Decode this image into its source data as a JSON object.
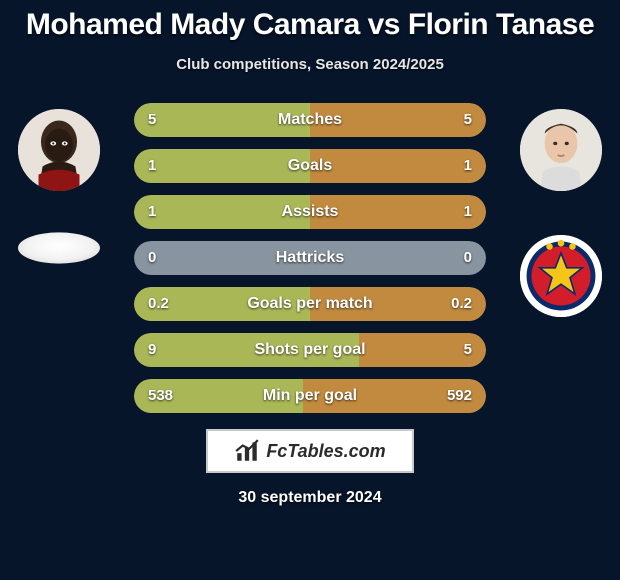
{
  "background_color": "#06152a",
  "title": "Mohamed Mady Camara vs Florin Tanase",
  "title_fontsize": 30,
  "title_color": "#ffffff",
  "subtitle": "Club competitions, Season 2024/2025",
  "subtitle_fontsize": 15,
  "subtitle_color": "#e6e6e6",
  "players": {
    "left": {
      "name": "Mohamed Mady Camara"
    },
    "right": {
      "name": "Florin Tanase"
    }
  },
  "bar": {
    "track_color": "#88949f",
    "left_color": "#a9b757",
    "right_color": "#c18a3f",
    "height": 34,
    "radius": 17,
    "label_fontsize": 16,
    "value_fontsize": 15,
    "text_color": "#ffffff"
  },
  "rows": [
    {
      "label": "Matches",
      "left_val": "5",
      "right_val": "5",
      "left_pct": 50,
      "right_pct": 50
    },
    {
      "label": "Goals",
      "left_val": "1",
      "right_val": "1",
      "left_pct": 50,
      "right_pct": 50
    },
    {
      "label": "Assists",
      "left_val": "1",
      "right_val": "1",
      "left_pct": 50,
      "right_pct": 50
    },
    {
      "label": "Hattricks",
      "left_val": "0",
      "right_val": "0",
      "left_pct": 0,
      "right_pct": 0
    },
    {
      "label": "Goals per match",
      "left_val": "0.2",
      "right_val": "0.2",
      "left_pct": 50,
      "right_pct": 50
    },
    {
      "label": "Shots per goal",
      "left_val": "9",
      "right_val": "5",
      "left_pct": 64,
      "right_pct": 36
    },
    {
      "label": "Min per goal",
      "left_val": "538",
      "right_val": "592",
      "left_pct": 48,
      "right_pct": 52
    }
  ],
  "footer": {
    "brand": "FcTables.com",
    "date": "30 september 2024",
    "box_border": "#c9c9c9",
    "box_bg": "#ffffff",
    "text_color": "#2b2b2b"
  }
}
